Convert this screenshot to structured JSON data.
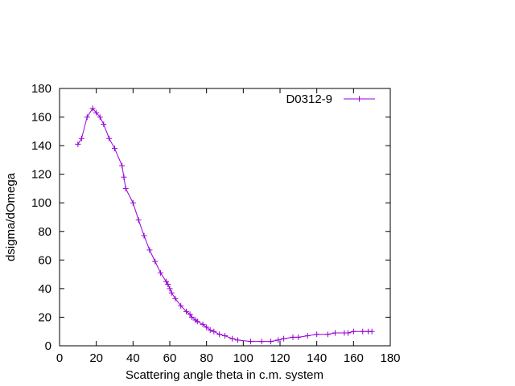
{
  "chart_data": {
    "type": "line",
    "title": "",
    "xlabel": "Scattering angle theta in c.m. system",
    "ylabel": "dsigma/dOmega",
    "xlim": [
      0,
      180
    ],
    "ylim": [
      0,
      180
    ],
    "xticks": [
      0,
      20,
      40,
      60,
      80,
      100,
      120,
      140,
      160,
      180
    ],
    "yticks": [
      0,
      20,
      40,
      60,
      80,
      100,
      120,
      140,
      160,
      180
    ],
    "grid": false,
    "legend_position": "top-right",
    "series": [
      {
        "name": "D0312-9",
        "color": "#9400D3",
        "marker": "plus",
        "x": [
          10,
          12,
          15,
          18,
          20,
          22,
          24,
          27,
          30,
          34,
          35,
          36,
          40,
          43,
          46,
          49,
          52,
          55,
          58,
          59,
          60,
          61,
          63,
          66,
          69,
          71,
          72,
          74,
          75,
          78,
          80,
          82,
          84,
          87,
          90,
          94,
          97,
          104,
          110,
          115,
          119,
          122,
          127,
          130,
          135,
          140,
          146,
          150,
          155,
          157,
          160,
          165,
          168,
          170
        ],
        "y": [
          141,
          145,
          160,
          166,
          163,
          160,
          155,
          145,
          138,
          126,
          118,
          110,
          100,
          88,
          77,
          67,
          59,
          51,
          45,
          43,
          40,
          37,
          33,
          28,
          24,
          22,
          20,
          18,
          17,
          15,
          13,
          11,
          10,
          8,
          7,
          5,
          4,
          3,
          3,
          3,
          4,
          5,
          6,
          6,
          7,
          8,
          8,
          9,
          9,
          9,
          10,
          10,
          10,
          10
        ]
      }
    ]
  }
}
